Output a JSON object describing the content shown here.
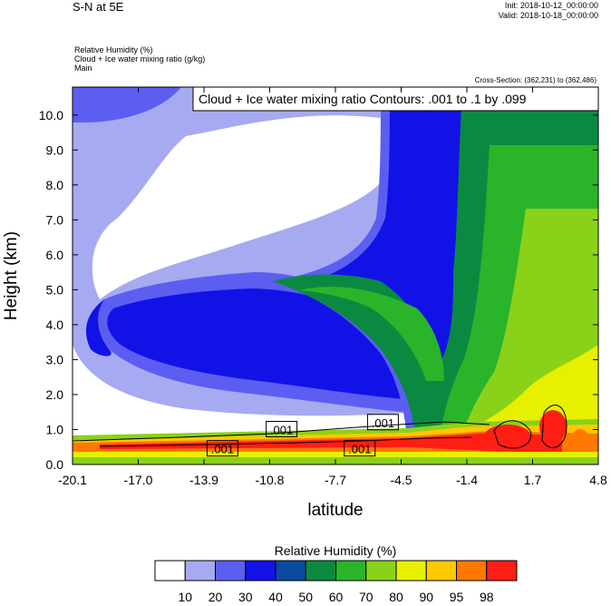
{
  "header": {
    "title": "S-N at 5E",
    "init": "Init: 2018-10-12_00:00:00",
    "valid": "Valid: 2018-10-18_00:00:00",
    "field1": "Relative Humidity   (%)",
    "field2": "Cloud + Ice water mixing ratio   (g/kg)",
    "field3": "Main",
    "cross_section": "Cross-Section: (362,231) to (362,486)",
    "contour_box": "Cloud + Ice water mixing ratio Contours: .001 to .1 by .099"
  },
  "colors": {
    "rh_palette": [
      "#ffffff",
      "#a6aaf0",
      "#5b5ef0",
      "#1212e6",
      "#0a4aa0",
      "#0a8a40",
      "#2ab42a",
      "#8ad21a",
      "#e6f000",
      "#ffc800",
      "#ff7800",
      "#ff1e14"
    ]
  },
  "chart_data": {
    "type": "heatmap",
    "title": "",
    "xlabel": "latitude",
    "ylabel": "Height (km)",
    "xlim": [
      -20.1,
      4.8
    ],
    "ylim": [
      0.0,
      10.8
    ],
    "x_ticks": [
      "-20.1",
      "-17.0",
      "-13.9",
      "-10.8",
      "-7.7",
      "-4.5",
      "-1.4",
      "1.7",
      "4.8"
    ],
    "y_ticks": [
      "0.0",
      "1.0",
      "2.0",
      "3.0",
      "4.0",
      "5.0",
      "6.0",
      "7.0",
      "8.0",
      "9.0",
      "10.0"
    ],
    "contour_labels": [
      {
        "text": ".001",
        "x": -10.2,
        "y": 1.0
      },
      {
        "text": ".001",
        "x": -5.4,
        "y": 1.2
      },
      {
        "text": ".001",
        "x": -13.0,
        "y": 0.45
      },
      {
        "text": ".001",
        "x": -6.5,
        "y": 0.45
      }
    ],
    "colorbar": {
      "title": "Relative Humidity  (%)",
      "levels": [
        "10",
        "20",
        "30",
        "40",
        "50",
        "60",
        "70",
        "80",
        "90",
        "95",
        "98"
      ]
    }
  }
}
